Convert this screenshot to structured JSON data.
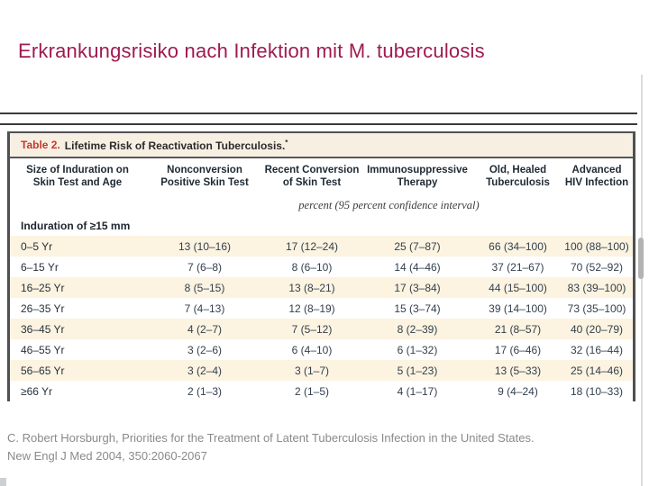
{
  "colors": {
    "title": "#9e1b50",
    "table_label": "#c13a2c",
    "row_shade": "#fcf3e0",
    "header_text": "#1e2933",
    "body_text": "#323f4d",
    "citation": "#8a8a8a",
    "frame": "#4f5052"
  },
  "slide": {
    "title": "Erkrankungsrisiko nach Infektion mit M. tuberculosis",
    "citation_line1": "C. Robert Horsburgh, Priorities for the Treatment of Latent Tuberculosis Infection in the United States.",
    "citation_line2": "New Engl J Med 2004, 350:2060-2067"
  },
  "table": {
    "label": "Table 2.",
    "title": "Lifetime Risk of Reactivation Tuberculosis.",
    "footnote_mark": "*",
    "columns": [
      {
        "line1": "Size of Induration on",
        "line2": "Skin Test and Age"
      },
      {
        "line1": "Nonconversion",
        "line2": "Positive Skin Test"
      },
      {
        "line1": "Recent Conversion",
        "line2": "of Skin Test"
      },
      {
        "line1": "Immunosuppressive",
        "line2": "Therapy"
      },
      {
        "line1": "Old, Healed",
        "line2": "Tuberculosis"
      },
      {
        "line1": "Advanced",
        "line2": "HIV Infection"
      }
    ],
    "units_note": "percent (95 percent confidence interval)",
    "section_header": "Induration of ≥15 mm",
    "rows": [
      {
        "label": "0–5 Yr",
        "shaded": true,
        "values": [
          "13 (10–16)",
          "17 (12–24)",
          "25 (7–87)",
          "66 (34–100)",
          "100 (88–100)"
        ]
      },
      {
        "label": "6–15 Yr",
        "shaded": false,
        "values": [
          "7 (6–8)",
          "8 (6–10)",
          "14 (4–46)",
          "37 (21–67)",
          "70 (52–92)"
        ]
      },
      {
        "label": "16–25 Yr",
        "shaded": true,
        "values": [
          "8 (5–15)",
          "13 (8–21)",
          "17 (3–84)",
          "44 (15–100)",
          "83 (39–100)"
        ]
      },
      {
        "label": "26–35 Yr",
        "shaded": false,
        "values": [
          "7 (4–13)",
          "12 (8–19)",
          "15 (3–74)",
          "39 (14–100)",
          "73 (35–100)"
        ]
      },
      {
        "label": "36–45 Yr",
        "shaded": true,
        "values": [
          "4 (2–7)",
          "7 (5–12)",
          "8 (2–39)",
          "21 (8–57)",
          "40 (20–79)"
        ]
      },
      {
        "label": "46–55 Yr",
        "shaded": false,
        "values": [
          "3 (2–6)",
          "6 (4–10)",
          "6 (1–32)",
          "17 (6–46)",
          "32 (16–44)"
        ]
      },
      {
        "label": "56–65 Yr",
        "shaded": true,
        "values": [
          "3 (2–4)",
          "3 (1–7)",
          "5 (1–23)",
          "13 (5–33)",
          "25 (14–46)"
        ]
      },
      {
        "label": "≥66 Yr",
        "shaded": false,
        "values": [
          "2 (1–3)",
          "2 (1–5)",
          "4 (1–17)",
          "9 (4–24)",
          "18 (10–33)"
        ]
      }
    ]
  }
}
